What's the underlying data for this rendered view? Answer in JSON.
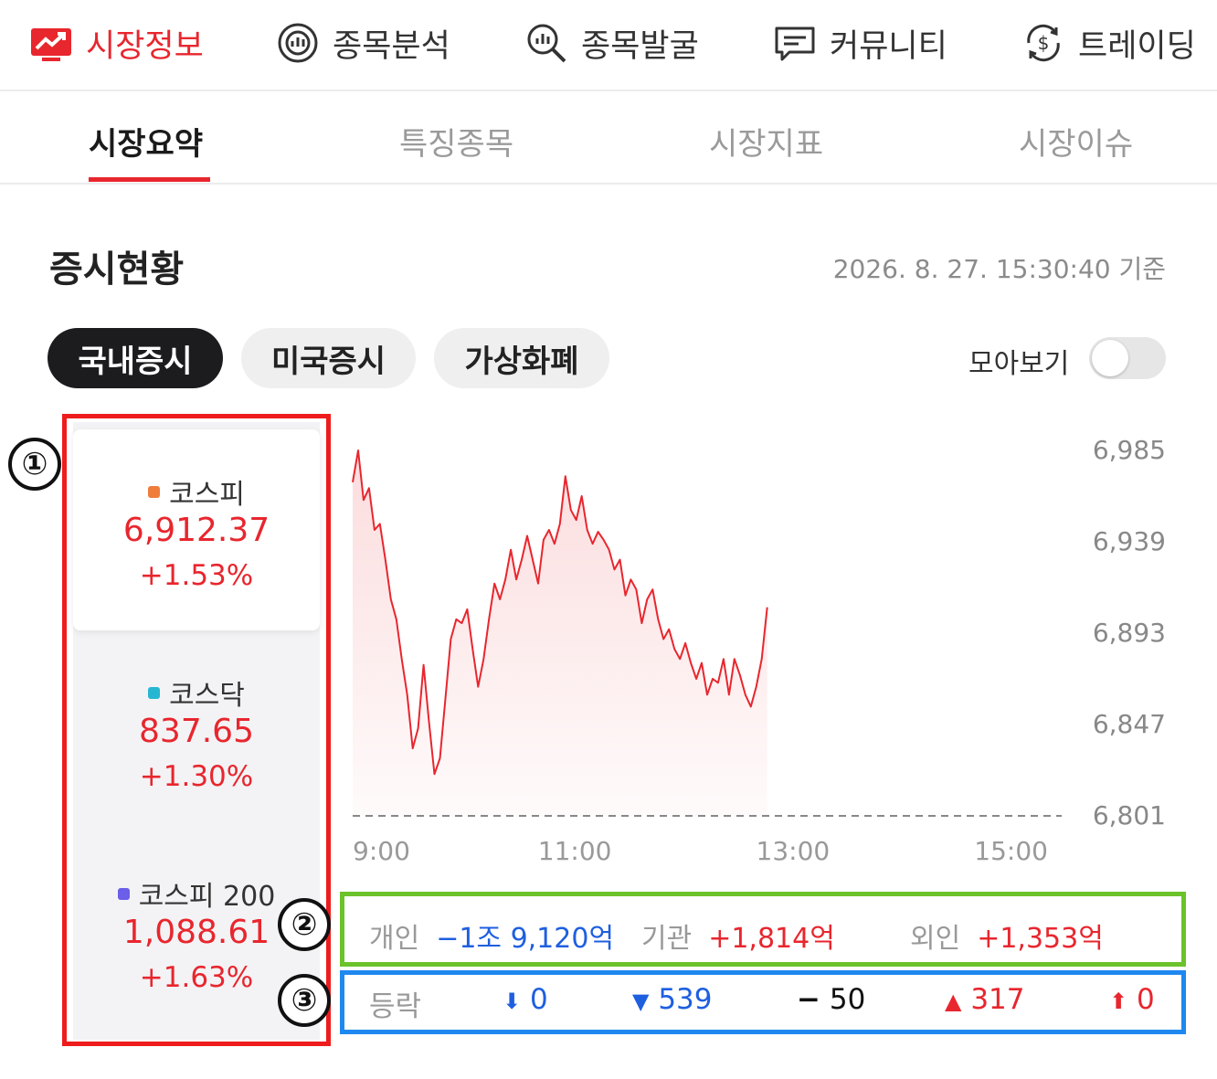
{
  "topnav": [
    {
      "label": "시장정보",
      "icon": "market-chart-icon",
      "active": true
    },
    {
      "label": "종목분석",
      "icon": "analysis-icon",
      "active": false
    },
    {
      "label": "종목발굴",
      "icon": "search-chart-icon",
      "active": false
    },
    {
      "label": "커뮤니티",
      "icon": "chat-icon",
      "active": false
    },
    {
      "label": "트레이딩",
      "icon": "dollar-exchange-icon",
      "active": false
    }
  ],
  "subtabs": [
    {
      "label": "시장요약",
      "active": true
    },
    {
      "label": "특징종목",
      "active": false
    },
    {
      "label": "시장지표",
      "active": false
    },
    {
      "label": "시장이슈",
      "active": false
    }
  ],
  "section": {
    "title": "증시현황",
    "timestamp": "2026. 8. 27. 15:30:40 기준"
  },
  "pills": [
    {
      "label": "국내증시",
      "active": true
    },
    {
      "label": "미국증시",
      "active": false
    },
    {
      "label": "가상화폐",
      "active": false
    }
  ],
  "toggle": {
    "label": "모아보기",
    "on": false
  },
  "indices": [
    {
      "name": "코스피",
      "value": "6,912.37",
      "change": "+1.53%",
      "dot_color": "#f07c3c",
      "selected": true
    },
    {
      "name": "코스닥",
      "value": "837.65",
      "change": "+1.30%",
      "dot_color": "#27b6d1",
      "selected": false
    },
    {
      "name": "코스피 200",
      "value": "1,088.61",
      "change": "+1.63%",
      "dot_color": "#6b5ee8",
      "selected": false
    }
  ],
  "annotations": {
    "one": "①",
    "two": "②",
    "three": "③"
  },
  "chart_data": {
    "type": "line",
    "series": [
      {
        "values": [
          [
            0,
            6969
          ],
          [
            3,
            6985
          ],
          [
            6,
            6960
          ],
          [
            9,
            6966
          ],
          [
            12,
            6945
          ],
          [
            15,
            6948
          ],
          [
            18,
            6930
          ],
          [
            21,
            6910
          ],
          [
            24,
            6900
          ],
          [
            27,
            6880
          ],
          [
            30,
            6862
          ],
          [
            33,
            6835
          ],
          [
            36,
            6845
          ],
          [
            39,
            6877
          ],
          [
            42,
            6848
          ],
          [
            45,
            6822
          ],
          [
            48,
            6830
          ],
          [
            51,
            6860
          ],
          [
            54,
            6890
          ],
          [
            57,
            6900
          ],
          [
            60,
            6898
          ],
          [
            63,
            6905
          ],
          [
            66,
            6885
          ],
          [
            69,
            6866
          ],
          [
            72,
            6880
          ],
          [
            75,
            6900
          ],
          [
            78,
            6918
          ],
          [
            81,
            6910
          ],
          [
            84,
            6920
          ],
          [
            87,
            6935
          ],
          [
            90,
            6920
          ],
          [
            93,
            6930
          ],
          [
            96,
            6942
          ],
          [
            99,
            6930
          ],
          [
            102,
            6918
          ],
          [
            105,
            6940
          ],
          [
            108,
            6945
          ],
          [
            111,
            6938
          ],
          [
            114,
            6948
          ],
          [
            117,
            6972
          ],
          [
            120,
            6955
          ],
          [
            123,
            6950
          ],
          [
            126,
            6962
          ],
          [
            129,
            6945
          ],
          [
            132,
            6938
          ],
          [
            135,
            6944
          ],
          [
            138,
            6940
          ],
          [
            141,
            6935
          ],
          [
            144,
            6925
          ],
          [
            147,
            6930
          ],
          [
            150,
            6912
          ],
          [
            153,
            6920
          ],
          [
            156,
            6915
          ],
          [
            159,
            6898
          ],
          [
            162,
            6910
          ],
          [
            165,
            6915
          ],
          [
            168,
            6900
          ],
          [
            171,
            6890
          ],
          [
            174,
            6895
          ],
          [
            177,
            6885
          ],
          [
            180,
            6880
          ],
          [
            183,
            6888
          ],
          [
            186,
            6878
          ],
          [
            189,
            6870
          ],
          [
            192,
            6878
          ],
          [
            195,
            6862
          ],
          [
            198,
            6870
          ],
          [
            201,
            6868
          ],
          [
            204,
            6880
          ],
          [
            207,
            6862
          ],
          [
            210,
            6880
          ],
          [
            213,
            6872
          ],
          [
            216,
            6862
          ],
          [
            219,
            6856
          ],
          [
            222,
            6866
          ],
          [
            225,
            6880
          ],
          [
            228,
            6906
          ]
        ]
      }
    ],
    "x_ticks": [
      "9:00",
      "11:00",
      "13:00",
      "15:00"
    ],
    "x_tick_minutes": [
      0,
      120,
      240,
      360
    ],
    "x_range_minutes": [
      0,
      390
    ],
    "y_ticks": [
      "6,985",
      "6,939",
      "6,893",
      "6,847",
      "6,801"
    ],
    "ylim": [
      6801,
      6985
    ],
    "baseline": 6801,
    "line_color": "#e8262e",
    "grid": false
  },
  "investors": [
    {
      "label": "개인",
      "value": "−1조 9,120억",
      "color": "#1e5fe0"
    },
    {
      "label": "기관",
      "value": "+1,814억",
      "color": "#e8262e"
    },
    {
      "label": "외인",
      "value": "+1,353억",
      "color": "#e8262e"
    }
  ],
  "advance_decline": {
    "label": "등락",
    "items": [
      {
        "symbol": "⬇",
        "value": "0",
        "color": "#1e5fe0"
      },
      {
        "symbol": "▼",
        "value": "539",
        "color": "#1e5fe0"
      },
      {
        "symbol": "−",
        "value": "50",
        "color": "#111111"
      },
      {
        "symbol": "▲",
        "value": "317",
        "color": "#e8262e"
      },
      {
        "symbol": "⬆",
        "value": "0",
        "color": "#e8262e"
      }
    ]
  },
  "colors": {
    "accent": "#e8262e",
    "box_red": "#ee1c1c",
    "box_green": "#6cc22a",
    "box_blue": "#1e88f0"
  }
}
